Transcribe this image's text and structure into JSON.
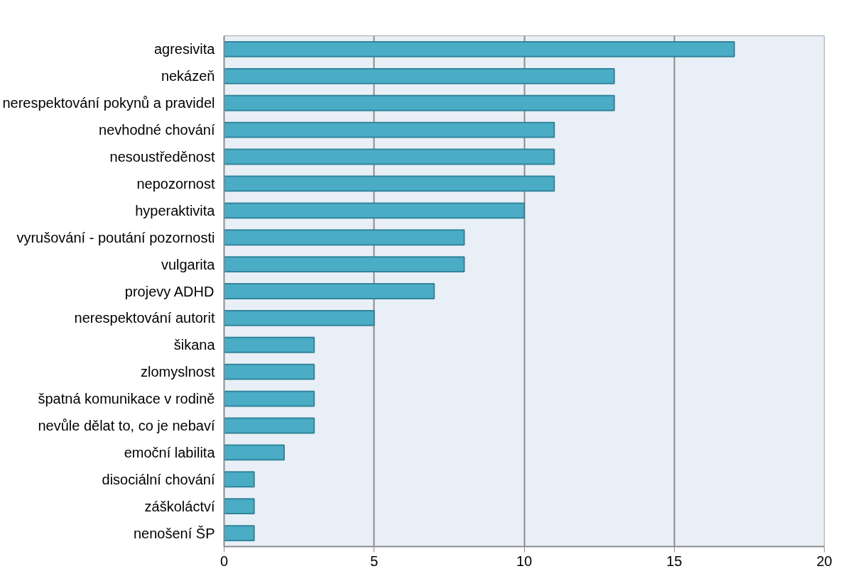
{
  "chart_data": {
    "type": "bar",
    "orientation": "horizontal",
    "categories": [
      "agresivita",
      "nekázeň",
      "nerespektování pokynů a pravidel",
      "nevhodné chování",
      "nesoustředěnost",
      "nepozornost",
      "hyperaktivita",
      "vyrušování - poutání pozornosti",
      "vulgarita",
      "projevy ADHD",
      "nerespektování autorit",
      "šikana",
      "zlomyslnost",
      "špatná komunikace v rodině",
      "nevůle dělat to, co je nebaví",
      "emoční labilita",
      "disociální chování",
      "záškoláctví",
      "nenošení ŠP"
    ],
    "values": [
      17,
      13,
      13,
      11,
      11,
      11,
      10,
      8,
      8,
      7,
      5,
      3,
      3,
      3,
      3,
      2,
      1,
      1,
      1
    ],
    "color": "#4bacc6",
    "xlim": [
      0,
      20
    ],
    "xticks": [
      0,
      5,
      10,
      15,
      20
    ],
    "grid": "x"
  }
}
